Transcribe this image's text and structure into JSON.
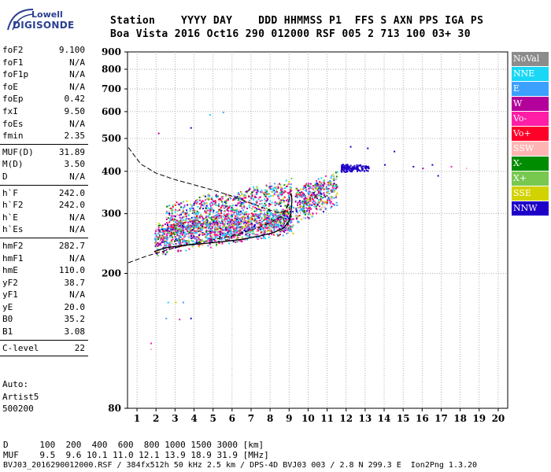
{
  "logo": {
    "line1": "Lowell",
    "line2": "DIGISONDE"
  },
  "header": {
    "labels": "Station    YYYY DAY    DDD HHMMSS P1  FFS S AXN PPS IGA PS",
    "values": "Boa Vista 2016 Oct16 290 012000 RSF 005 2 713 100 03+ 30"
  },
  "params": {
    "group1": [
      {
        "name": "foF2",
        "value": "9.100"
      },
      {
        "name": "foF1",
        "value": "N/A"
      },
      {
        "name": "foF1p",
        "value": "N/A"
      },
      {
        "name": "foE",
        "value": "N/A"
      },
      {
        "name": "foEp",
        "value": "0.42"
      },
      {
        "name": "fxI",
        "value": "9.50"
      },
      {
        "name": "foEs",
        "value": "N/A"
      },
      {
        "name": "fmin",
        "value": "2.35"
      }
    ],
    "group2": [
      {
        "name": "MUF(D)",
        "value": "31.89"
      },
      {
        "name": "M(D)",
        "value": "3.50"
      },
      {
        "name": "D",
        "value": "N/A"
      }
    ],
    "group3": [
      {
        "name": "h`F",
        "value": "242.0"
      },
      {
        "name": "h`F2",
        "value": "242.0"
      },
      {
        "name": "h`E",
        "value": "N/A"
      },
      {
        "name": "h`Es",
        "value": "N/A"
      }
    ],
    "group4": [
      {
        "name": "hmF2",
        "value": "282.7"
      },
      {
        "name": "hmF1",
        "value": "N/A"
      },
      {
        "name": "hmE",
        "value": "110.0"
      },
      {
        "name": "yF2",
        "value": "38.7"
      },
      {
        "name": "yF1",
        "value": "N/A"
      },
      {
        "name": "yE",
        "value": "20.0"
      },
      {
        "name": "B0",
        "value": "35.2"
      },
      {
        "name": "B1",
        "value": "3.08"
      }
    ],
    "group5": [
      {
        "name": "C-level",
        "value": "22"
      }
    ]
  },
  "auto": {
    "line1": "Auto:",
    "line2": "Artist5",
    "line3": "500200"
  },
  "legend": [
    {
      "label": "NoVal",
      "color": "#8c8c8c"
    },
    {
      "label": "NNE",
      "color": "#19d7f5"
    },
    {
      "label": "E",
      "color": "#3ca0ff"
    },
    {
      "label": "W",
      "color": "#b4009b"
    },
    {
      "label": "Vo-",
      "color": "#ff1ea5"
    },
    {
      "label": "Vo+",
      "color": "#ff0028"
    },
    {
      "label": "SSW",
      "color": "#ffb4b4"
    },
    {
      "label": "X-",
      "color": "#008c00"
    },
    {
      "label": "X+",
      "color": "#78c850"
    },
    {
      "label": "SSE",
      "color": "#d2d200"
    },
    {
      "label": "NNW",
      "color": "#1e00c8"
    }
  ],
  "footer": {
    "line1": "D      100  200  400  600  800 1000 1500 3000 [km]",
    "line2": "MUF    9.5  9.6 10.1 11.0 12.1 13.9 18.9 31.9 [MHz]",
    "line3": "BVJ03_2016290012000.RSF / 384fx512h 50 kHz 2.5 km / DPS-4D BVJ03 003 / 2.8 N 299.3 E  Ion2Png 1.3.20"
  },
  "chart_data": {
    "type": "scatter",
    "title": "",
    "xlabel": "",
    "ylabel": "",
    "xlim": [
      0.5,
      20.5
    ],
    "ylim": [
      80,
      900
    ],
    "y_scale": "log",
    "x_ticks": [
      1,
      2,
      3,
      4,
      5,
      6,
      7,
      8,
      9,
      10,
      11,
      12,
      13,
      14,
      15,
      16,
      17,
      18,
      19,
      20
    ],
    "y_ticks": [
      80,
      200,
      300,
      400,
      500,
      600,
      700,
      800,
      900
    ],
    "grid": true,
    "echo_regions": [
      {
        "name": "O-trace",
        "x": [
          1.9,
          9.2
        ],
        "y": [
          255,
          290
        ],
        "spread": 30,
        "density": 1600
      },
      {
        "name": "O-trace upper",
        "x": [
          2.5,
          9.1
        ],
        "y": [
          290,
          350
        ],
        "spread": 35,
        "density": 700
      },
      {
        "name": "X-region",
        "x": [
          9.3,
          11.5
        ],
        "y": [
          320,
          360
        ],
        "spread": 45,
        "density": 450
      },
      {
        "name": "NNW cluster",
        "x": [
          11.7,
          13.2
        ],
        "y": [
          410,
          410
        ],
        "spread": 12,
        "density": 120
      }
    ],
    "sparse_echoes": [
      {
        "x": 2.1,
        "y": 520,
        "color": "W"
      },
      {
        "x": 3.8,
        "y": 540,
        "color": "NNW"
      },
      {
        "x": 4.8,
        "y": 590,
        "color": "NNE"
      },
      {
        "x": 5.5,
        "y": 600,
        "color": "E"
      },
      {
        "x": 14.0,
        "y": 420,
        "color": "NNW"
      },
      {
        "x": 14.5,
        "y": 460,
        "color": "NNW"
      },
      {
        "x": 15.5,
        "y": 415,
        "color": "NNW"
      },
      {
        "x": 16.0,
        "y": 410,
        "color": "W"
      },
      {
        "x": 16.5,
        "y": 420,
        "color": "NNW"
      },
      {
        "x": 16.8,
        "y": 390,
        "color": "NNW"
      },
      {
        "x": 17.5,
        "y": 415,
        "color": "Vo-"
      },
      {
        "x": 18.3,
        "y": 410,
        "color": "SSW"
      },
      {
        "x": 13.1,
        "y": 470,
        "color": "NNW"
      },
      {
        "x": 12.2,
        "y": 475,
        "color": "NNW"
      },
      {
        "x": 2.6,
        "y": 165,
        "color": "NNE"
      },
      {
        "x": 3.0,
        "y": 165,
        "color": "SSE"
      },
      {
        "x": 3.4,
        "y": 165,
        "color": "E"
      },
      {
        "x": 2.5,
        "y": 148,
        "color": "E"
      },
      {
        "x": 3.2,
        "y": 147,
        "color": "Vo-"
      },
      {
        "x": 3.8,
        "y": 148,
        "color": "NNW"
      },
      {
        "x": 1.7,
        "y": 125,
        "color": "Vo-"
      },
      {
        "x": 1.7,
        "y": 120,
        "color": "SSW"
      }
    ],
    "profile_solid": [
      {
        "x": 1.9,
        "y": 232
      },
      {
        "x": 2.5,
        "y": 238
      },
      {
        "x": 3.5,
        "y": 242
      },
      {
        "x": 4.5,
        "y": 245
      },
      {
        "x": 5.5,
        "y": 248
      },
      {
        "x": 6.5,
        "y": 252
      },
      {
        "x": 7.5,
        "y": 258
      },
      {
        "x": 8.2,
        "y": 264
      },
      {
        "x": 8.7,
        "y": 272
      },
      {
        "x": 9.0,
        "y": 285
      },
      {
        "x": 9.1,
        "y": 300
      },
      {
        "x": 9.15,
        "y": 330
      },
      {
        "x": 9.1,
        "y": 345
      }
    ],
    "profile_dashed": [
      {
        "x": 0.55,
        "y": 470
      },
      {
        "x": 1.2,
        "y": 420
      },
      {
        "x": 2.0,
        "y": 395
      },
      {
        "x": 3.0,
        "y": 378
      },
      {
        "x": 4.0,
        "y": 365
      },
      {
        "x": 5.0,
        "y": 352
      },
      {
        "x": 6.0,
        "y": 338
      },
      {
        "x": 7.0,
        "y": 322
      },
      {
        "x": 7.8,
        "y": 310
      },
      {
        "x": 8.4,
        "y": 302
      },
      {
        "x": 8.8,
        "y": 305
      },
      {
        "x": 9.0,
        "y": 330
      },
      {
        "x": 9.1,
        "y": 345
      }
    ],
    "profile_dashed_low": [
      {
        "x": 0.55,
        "y": 215
      },
      {
        "x": 1.5,
        "y": 225
      },
      {
        "x": 3.0,
        "y": 238
      },
      {
        "x": 4.5,
        "y": 248
      },
      {
        "x": 6.0,
        "y": 258
      },
      {
        "x": 7.0,
        "y": 268
      },
      {
        "x": 8.0,
        "y": 282
      },
      {
        "x": 8.6,
        "y": 295
      },
      {
        "x": 9.0,
        "y": 320
      }
    ]
  }
}
